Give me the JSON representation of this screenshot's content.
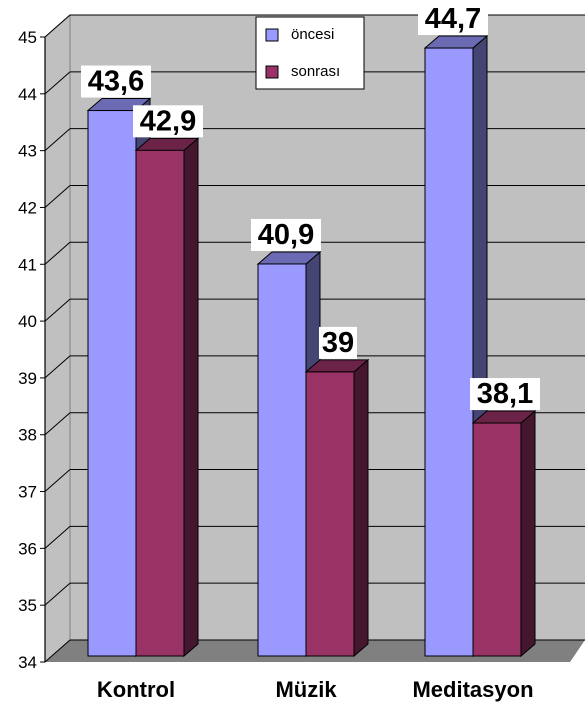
{
  "chart_data": {
    "type": "bar",
    "categories": [
      "Kontrol",
      "Müzik",
      "Meditasyon"
    ],
    "series": [
      {
        "name": "öncesi",
        "values": [
          43.6,
          40.9,
          44.7
        ],
        "labels": [
          "43,6",
          "40,9",
          "44,7"
        ],
        "color": "#9999ff"
      },
      {
        "name": "sonrası",
        "values": [
          42.9,
          39,
          38.1
        ],
        "labels": [
          "42,9",
          "39",
          "38,1"
        ],
        "color": "#993366"
      }
    ],
    "ylim": [
      34,
      45
    ],
    "yticks": [
      "34",
      "35",
      "36",
      "37",
      "38",
      "39",
      "40",
      "41",
      "42",
      "43",
      "44",
      "45"
    ],
    "grid": true,
    "legend_position": "top-center",
    "three_d": true
  }
}
